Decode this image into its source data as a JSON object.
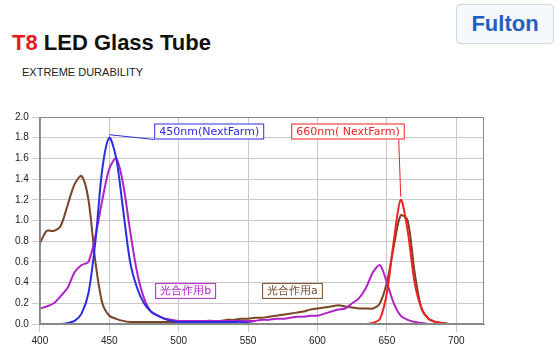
{
  "header": {
    "title": "T8 LED Glass Tube",
    "subtitle": "EXTREME DURABILITY",
    "logo": "Fulton"
  },
  "chart_data": {
    "type": "line",
    "x": [
      400,
      405,
      410,
      415,
      420,
      425,
      430,
      435,
      440,
      445,
      450,
      455,
      460,
      465,
      470,
      475,
      480,
      485,
      490,
      495,
      500,
      505,
      510,
      515,
      520,
      525,
      530,
      535,
      540,
      545,
      550,
      555,
      560,
      565,
      570,
      575,
      580,
      585,
      590,
      595,
      600,
      605,
      610,
      615,
      620,
      625,
      630,
      635,
      640,
      645,
      650,
      655,
      660,
      665,
      670,
      675,
      680,
      685,
      690,
      695,
      700
    ],
    "series": [
      {
        "name": "450nm(NextFarm)",
        "color": "#2a2ee0",
        "values": [
          0,
          0,
          0,
          0,
          0.01,
          0.03,
          0.1,
          0.3,
          0.8,
          1.5,
          1.8,
          1.6,
          1.1,
          0.6,
          0.35,
          0.2,
          0.12,
          0.08,
          0.05,
          0.03,
          0.02,
          0.02,
          0.02,
          0.02,
          0.02,
          0.02,
          0.02,
          0.02,
          0.02,
          0.02,
          0.01,
          0,
          0,
          0,
          0,
          0,
          0,
          0,
          0,
          0,
          0,
          0,
          0,
          0,
          0,
          0,
          0,
          0,
          0,
          0,
          0,
          0,
          0,
          0,
          0,
          0,
          0,
          0,
          0,
          0,
          0
        ]
      },
      {
        "name": "660nm( NextFarm)",
        "color": "#ee2222",
        "values": [
          0,
          0,
          0,
          0,
          0,
          0,
          0,
          0,
          0,
          0,
          0,
          0,
          0,
          0,
          0,
          0,
          0,
          0,
          0,
          0,
          0,
          0,
          0,
          0,
          0,
          0,
          0,
          0,
          0,
          0,
          0,
          0,
          0,
          0,
          0,
          0,
          0,
          0,
          0,
          0,
          0,
          0,
          0,
          0,
          0,
          0,
          0,
          0,
          0.01,
          0.05,
          0.3,
          0.8,
          1.2,
          0.9,
          0.4,
          0.15,
          0.05,
          0.02,
          0.01,
          0,
          0
        ]
      },
      {
        "name": "光合作用b",
        "color": "#b022c8",
        "values": [
          0.15,
          0.17,
          0.2,
          0.27,
          0.35,
          0.5,
          0.57,
          0.6,
          0.85,
          1.2,
          1.5,
          1.6,
          1.35,
          0.9,
          0.5,
          0.25,
          0.12,
          0.08,
          0.05,
          0.04,
          0.03,
          0.03,
          0.03,
          0.03,
          0.03,
          0.03,
          0.03,
          0.03,
          0.03,
          0.03,
          0.03,
          0.03,
          0.04,
          0.04,
          0.05,
          0.05,
          0.06,
          0.07,
          0.07,
          0.08,
          0.08,
          0.1,
          0.12,
          0.14,
          0.15,
          0.2,
          0.25,
          0.35,
          0.5,
          0.57,
          0.4,
          0.2,
          0.08,
          0.04,
          0.02,
          0.01,
          0,
          0,
          0,
          0,
          0
        ]
      },
      {
        "name": "光合作用a",
        "color": "#7a4526",
        "values": [
          0.78,
          0.9,
          0.9,
          0.95,
          1.15,
          1.35,
          1.43,
          1.2,
          0.6,
          0.2,
          0.08,
          0.05,
          0.03,
          0.02,
          0.02,
          0.02,
          0.02,
          0.02,
          0.02,
          0.02,
          0.02,
          0.02,
          0.02,
          0.02,
          0.03,
          0.03,
          0.03,
          0.04,
          0.04,
          0.05,
          0.05,
          0.06,
          0.06,
          0.07,
          0.08,
          0.09,
          0.1,
          0.11,
          0.12,
          0.14,
          0.15,
          0.16,
          0.17,
          0.18,
          0.17,
          0.16,
          0.15,
          0.15,
          0.15,
          0.2,
          0.4,
          0.75,
          1.05,
          1.0,
          0.5,
          0.15,
          0.05,
          0.02,
          0.01,
          0,
          0
        ]
      }
    ],
    "xlim": [
      400,
      720
    ],
    "xticks": [
      400,
      450,
      500,
      550,
      600,
      650,
      700
    ],
    "ylim": [
      0,
      2
    ],
    "yticks": [
      {
        "value": 0,
        "label": "0.0"
      },
      {
        "value": 0.2,
        "label": "0.2"
      },
      {
        "value": 0.4,
        "label": "0.4"
      },
      {
        "value": 0.6,
        "label": "0.6"
      },
      {
        "value": 0.8,
        "label": "0.8"
      },
      {
        "value": 1,
        "label": "1.0"
      },
      {
        "value": 1.2,
        "label": "1.2"
      },
      {
        "value": 1.4,
        "label": "1.4"
      },
      {
        "value": 1.6,
        "label": "1.6"
      },
      {
        "value": 1.8,
        "label": "1.8"
      },
      {
        "value": 2,
        "label": "2.0"
      }
    ],
    "grid": true
  }
}
